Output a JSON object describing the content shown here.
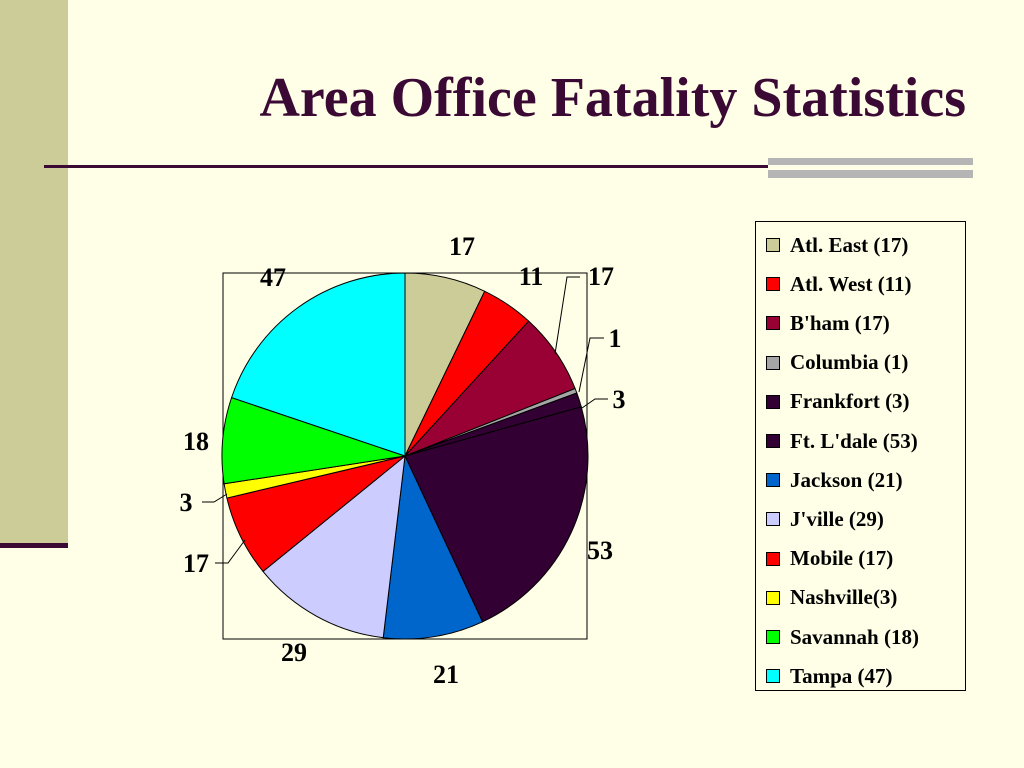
{
  "slide": {
    "title": "Area Office Fatality Statistics"
  },
  "chart_data": {
    "type": "pie",
    "title": "",
    "categories": [
      "Atl. East",
      "Atl. West",
      "B'ham",
      "Columbia",
      "Frankfort",
      "Ft. L'dale",
      "Jackson",
      "J'ville",
      "Mobile",
      "Nashville",
      "Savannah",
      "Tampa"
    ],
    "values": [
      17,
      11,
      17,
      1,
      3,
      53,
      21,
      29,
      17,
      3,
      18,
      47
    ],
    "data_labels": [
      "17",
      "11",
      "17",
      "1",
      "3",
      "53",
      "21",
      "29",
      "17",
      "3",
      "18",
      "47"
    ],
    "legend": [
      "Atl. East (17)",
      "Atl. West (11)",
      "B'ham (17)",
      "Columbia (1)",
      "Frankfort (3)",
      "Ft. L'dale (53)",
      "Jackson (21)",
      "J'ville (29)",
      "Mobile (17)",
      "Nashville(3)",
      "Savannah (18)",
      "Tampa (47)"
    ],
    "colors": [
      "#CCCC99",
      "#FF0000",
      "#990033",
      "#A6A6A6",
      "#330033",
      "#330033",
      "#0066CC",
      "#CCCCFF",
      "#FF0000",
      "#FFFF00",
      "#00FF00",
      "#00FFFF"
    ],
    "legend_position": "right"
  }
}
